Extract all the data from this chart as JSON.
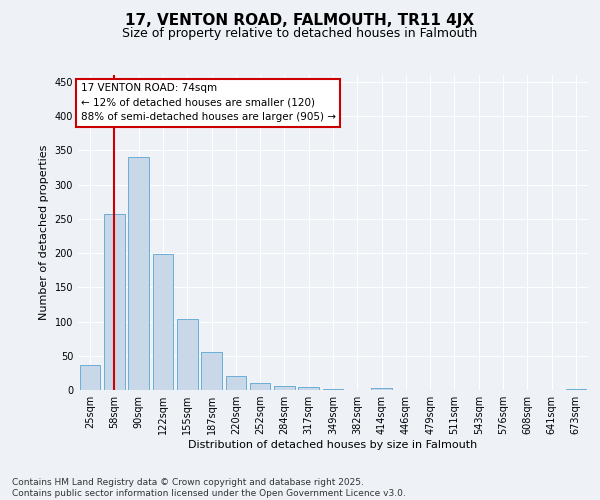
{
  "title": "17, VENTON ROAD, FALMOUTH, TR11 4JX",
  "subtitle": "Size of property relative to detached houses in Falmouth",
  "xlabel": "Distribution of detached houses by size in Falmouth",
  "ylabel": "Number of detached properties",
  "categories": [
    "25sqm",
    "58sqm",
    "90sqm",
    "122sqm",
    "155sqm",
    "187sqm",
    "220sqm",
    "252sqm",
    "284sqm",
    "317sqm",
    "349sqm",
    "382sqm",
    "414sqm",
    "446sqm",
    "479sqm",
    "511sqm",
    "543sqm",
    "576sqm",
    "608sqm",
    "641sqm",
    "673sqm"
  ],
  "values": [
    37,
    257,
    340,
    198,
    103,
    56,
    21,
    10,
    6,
    4,
    2,
    0,
    3,
    0,
    0,
    0,
    0,
    0,
    0,
    0,
    2
  ],
  "bar_color": "#c8d8e8",
  "bar_edge_color": "#6aaed6",
  "vline_x": 1,
  "vline_color": "#cc0000",
  "annotation_text": "17 VENTON ROAD: 74sqm\n← 12% of detached houses are smaller (120)\n88% of semi-detached houses are larger (905) →",
  "annotation_box_color": "#ffffff",
  "annotation_box_edge_color": "#cc0000",
  "ylim": [
    0,
    460
  ],
  "yticks": [
    0,
    50,
    100,
    150,
    200,
    250,
    300,
    350,
    400,
    450
  ],
  "footer": "Contains HM Land Registry data © Crown copyright and database right 2025.\nContains public sector information licensed under the Open Government Licence v3.0.",
  "background_color": "#eef2f7",
  "grid_color": "#ffffff",
  "title_fontsize": 11,
  "subtitle_fontsize": 9,
  "annotation_fontsize": 7.5,
  "footer_fontsize": 6.5,
  "ylabel_fontsize": 8,
  "xlabel_fontsize": 8,
  "tick_fontsize": 7
}
